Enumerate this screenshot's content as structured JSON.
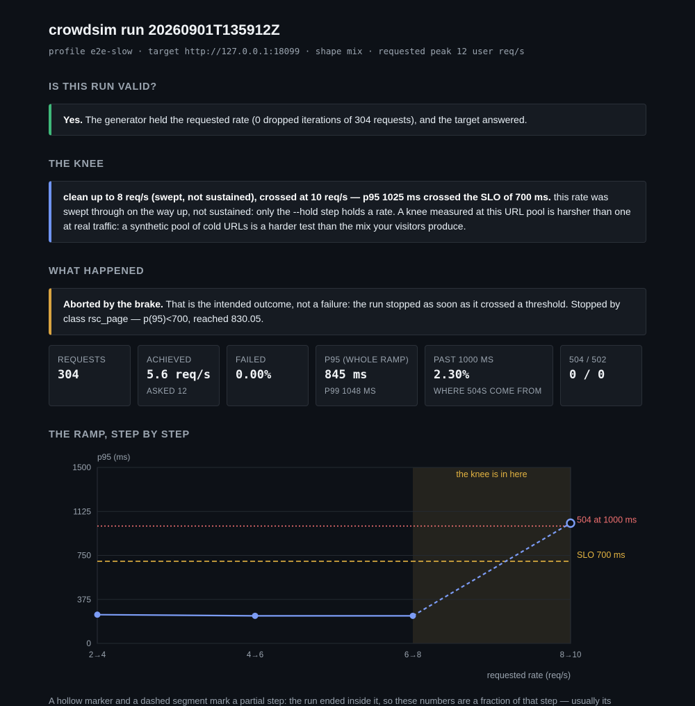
{
  "header": {
    "title": "crowdsim run 20260901T135912Z",
    "subtitle": "profile e2e-slow · target http://127.0.0.1:18099 · shape mix · requested peak 12 user req/s"
  },
  "valid": {
    "heading": "IS THIS RUN VALID?",
    "lead": "Yes.",
    "text": " The generator held the requested rate (0 dropped iterations of 304 requests), and the target answered."
  },
  "knee": {
    "heading": "THE KNEE",
    "lead": "clean up to 8 req/s (swept, not sustained), crossed at 10 req/s — p95 1025 ms crossed the SLO of 700 ms.",
    "text": " this rate was swept through on the way up, not sustained: only the --hold step holds a rate. A knee measured at this URL pool is harsher than one at real traffic: a synthetic pool of cold URLs is a harder test than the mix your visitors produce."
  },
  "happened": {
    "heading": "WHAT HAPPENED",
    "lead": "Aborted by the brake.",
    "text": " That is the intended outcome, not a failure: the run stopped as soon as it crossed a threshold. Stopped by class rsc_page — p(95)<700, reached 830.05."
  },
  "stats": [
    {
      "label": "REQUESTS",
      "value": "304",
      "sub": ""
    },
    {
      "label": "ACHIEVED",
      "value": "5.6 req/s",
      "sub": "ASKED 12"
    },
    {
      "label": "FAILED",
      "value": "0.00%",
      "sub": ""
    },
    {
      "label": "P95 (WHOLE RAMP)",
      "value": "845 ms",
      "sub": "P99 1048 MS"
    },
    {
      "label": "PAST 1000 MS",
      "value": "2.30%",
      "sub": "WHERE 504S COME FROM"
    },
    {
      "label": "504 / 502",
      "value": "0 / 0",
      "sub": ""
    }
  ],
  "ramp": {
    "heading": "THE RAMP, STEP BY STEP"
  },
  "chart_data": {
    "type": "line",
    "title": "",
    "xlabel": "requested rate (req/s)",
    "ylabel": "p95 (ms)",
    "categories": [
      "2→4",
      "4→6",
      "6→8",
      "8→10"
    ],
    "ylim": [
      0,
      1500
    ],
    "yticks": [
      "0",
      "375",
      "750",
      "1125",
      "1500"
    ],
    "series": [
      {
        "values": [
          245,
          235,
          235,
          1025
        ],
        "partial": [
          false,
          false,
          false,
          true
        ]
      }
    ],
    "reference_lines": [
      {
        "label": "504 at 1000 ms",
        "value": 1000,
        "color": "#f07070",
        "style": "dotted"
      },
      {
        "label": "SLO 700 ms",
        "value": 700,
        "color": "#e3b341",
        "style": "dashed"
      }
    ],
    "knee_band": {
      "label": "the knee is in here",
      "from": "6→8",
      "to": "8→10"
    },
    "grid": true,
    "colors": {
      "line": "#7c9cf5",
      "knee": "#e3b341"
    }
  },
  "footnote": "A hollow marker and a dashed segment mark a partial step: the run ended inside it, so these numbers are a fraction of that step — usually its"
}
